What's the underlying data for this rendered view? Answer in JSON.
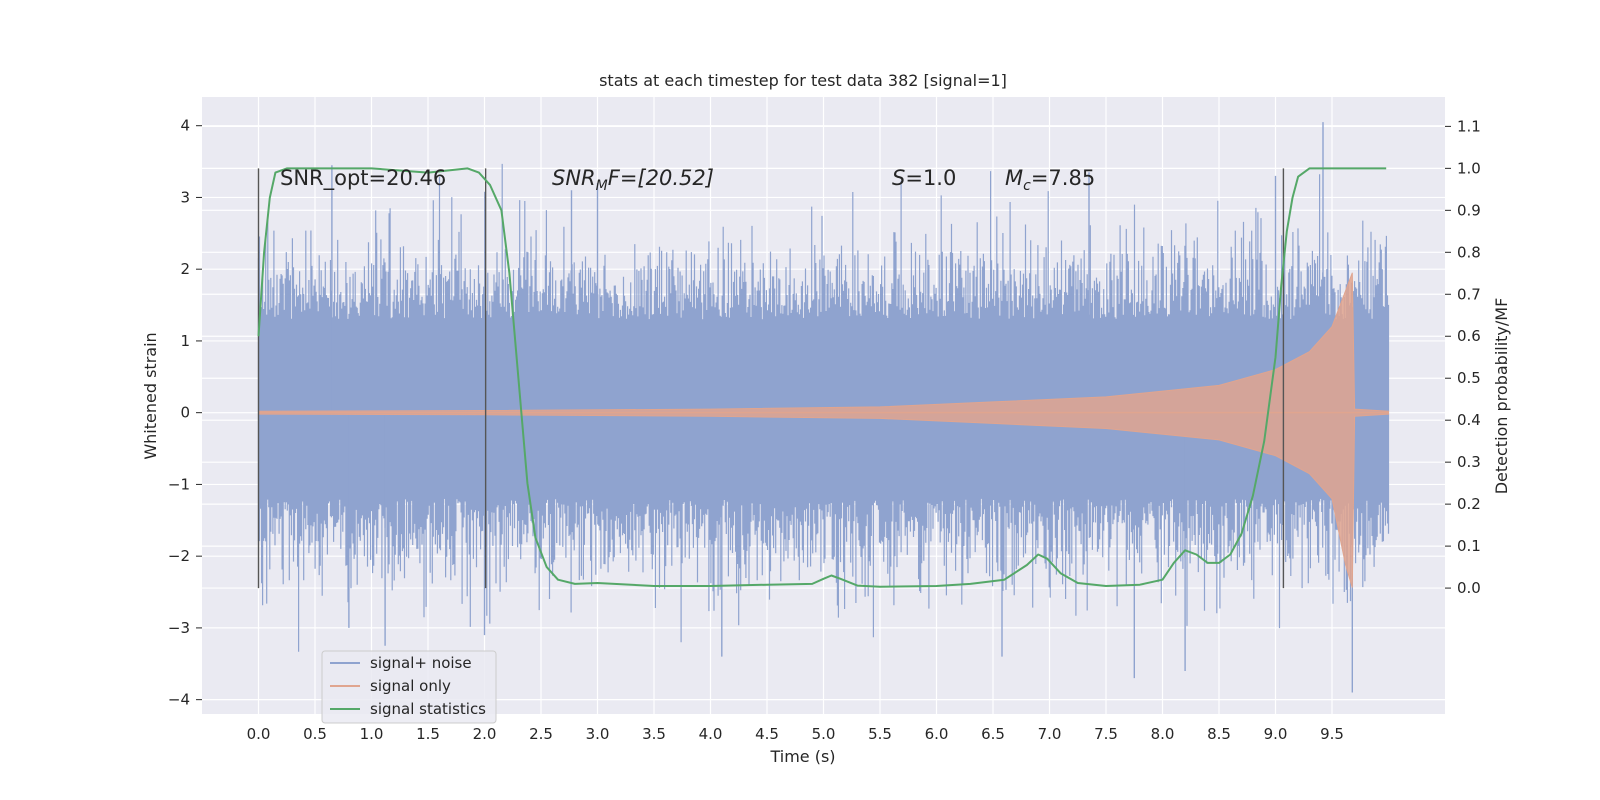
{
  "chart_data": {
    "type": "line",
    "title": "stats at each timestep for test data 382 [signal=1]",
    "xlabel": "Time (s)",
    "ylabel": "Whitened strain",
    "y2label": "Detection probability/MF",
    "xlim": [
      -0.5,
      10.5
    ],
    "ylim": [
      -4.2,
      4.4
    ],
    "y2lim": [
      -0.3,
      1.17
    ],
    "x_ticks": [
      "0.0",
      "0.5",
      "1.0",
      "1.5",
      "2.0",
      "2.5",
      "3.0",
      "3.5",
      "4.0",
      "4.5",
      "5.0",
      "5.5",
      "6.0",
      "6.5",
      "7.0",
      "7.5",
      "8.0",
      "8.5",
      "9.0",
      "9.5"
    ],
    "y_ticks": [
      "−4",
      "−3",
      "−2",
      "−1",
      "0",
      "1",
      "2",
      "3",
      "4"
    ],
    "y2_ticks": [
      "0.0",
      "0.1",
      "0.2",
      "0.3",
      "0.4",
      "0.5",
      "0.6",
      "0.7",
      "0.8",
      "0.9",
      "1.0",
      "1.1"
    ],
    "grid": true,
    "legend_position": "lower-left",
    "annotations": {
      "snr_opt": "SNR_opt=20.46",
      "snr_mf_main": "SNR",
      "snr_mf_sub": "M",
      "snr_mf_rest": "F=[20.52]",
      "s_sym": "S",
      "s_rest": "=1.0",
      "mc_sym": "M",
      "mc_sub": "c",
      "mc_rest": "=7.85"
    },
    "segment_markers": [
      0.0,
      2.01,
      9.07
    ],
    "series": [
      {
        "name": "signal+ noise",
        "color": "#8fa3cf",
        "axis": "left",
        "x_range": [
          0.0,
          10.0
        ],
        "core_band": [
          -1.2,
          1.3
        ],
        "peak_max": 4.05,
        "peak_min": -3.9
      },
      {
        "name": "signal only",
        "color": "#e0a58f",
        "axis": "left",
        "envelope": [
          {
            "x": 0.0,
            "y": 0.02
          },
          {
            "x": 2.0,
            "y": 0.03
          },
          {
            "x": 4.0,
            "y": 0.05
          },
          {
            "x": 5.5,
            "y": 0.08
          },
          {
            "x": 6.5,
            "y": 0.15
          },
          {
            "x": 7.5,
            "y": 0.22
          },
          {
            "x": 8.5,
            "y": 0.38
          },
          {
            "x": 9.0,
            "y": 0.6
          },
          {
            "x": 9.3,
            "y": 0.85
          },
          {
            "x": 9.5,
            "y": 1.2
          },
          {
            "x": 9.62,
            "y": 1.7
          },
          {
            "x": 9.68,
            "y": 1.95
          },
          {
            "x": 9.7,
            "y": 0.05
          },
          {
            "x": 10.0,
            "y": 0.02
          }
        ]
      },
      {
        "name": "signal statistics",
        "color": "#55a868",
        "axis": "right",
        "points": [
          [
            0.0,
            0.6
          ],
          [
            0.05,
            0.8
          ],
          [
            0.1,
            0.93
          ],
          [
            0.15,
            0.99
          ],
          [
            0.25,
            1.0
          ],
          [
            0.5,
            1.0
          ],
          [
            1.0,
            1.0
          ],
          [
            1.5,
            0.99
          ],
          [
            1.85,
            1.0
          ],
          [
            1.95,
            0.99
          ],
          [
            2.05,
            0.96
          ],
          [
            2.15,
            0.9
          ],
          [
            2.22,
            0.75
          ],
          [
            2.3,
            0.5
          ],
          [
            2.38,
            0.25
          ],
          [
            2.45,
            0.12
          ],
          [
            2.55,
            0.05
          ],
          [
            2.65,
            0.02
          ],
          [
            2.8,
            0.01
          ],
          [
            3.0,
            0.012
          ],
          [
            3.5,
            0.005
          ],
          [
            4.0,
            0.005
          ],
          [
            4.5,
            0.008
          ],
          [
            4.9,
            0.01
          ],
          [
            5.0,
            0.022
          ],
          [
            5.07,
            0.03
          ],
          [
            5.15,
            0.022
          ],
          [
            5.3,
            0.006
          ],
          [
            5.5,
            0.003
          ],
          [
            6.0,
            0.005
          ],
          [
            6.3,
            0.01
          ],
          [
            6.6,
            0.02
          ],
          [
            6.8,
            0.055
          ],
          [
            6.9,
            0.08
          ],
          [
            6.98,
            0.07
          ],
          [
            7.1,
            0.035
          ],
          [
            7.25,
            0.012
          ],
          [
            7.5,
            0.005
          ],
          [
            7.8,
            0.008
          ],
          [
            8.0,
            0.02
          ],
          [
            8.1,
            0.06
          ],
          [
            8.2,
            0.09
          ],
          [
            8.3,
            0.08
          ],
          [
            8.4,
            0.06
          ],
          [
            8.5,
            0.06
          ],
          [
            8.6,
            0.08
          ],
          [
            8.7,
            0.13
          ],
          [
            8.8,
            0.22
          ],
          [
            8.9,
            0.35
          ],
          [
            9.0,
            0.55
          ],
          [
            9.05,
            0.72
          ],
          [
            9.1,
            0.85
          ],
          [
            9.15,
            0.93
          ],
          [
            9.2,
            0.98
          ],
          [
            9.3,
            1.0
          ],
          [
            9.5,
            1.0
          ],
          [
            9.98,
            1.0
          ]
        ]
      }
    ]
  },
  "legend": {
    "item1": "signal+ noise",
    "item2": "signal only",
    "item3": "signal statistics"
  }
}
